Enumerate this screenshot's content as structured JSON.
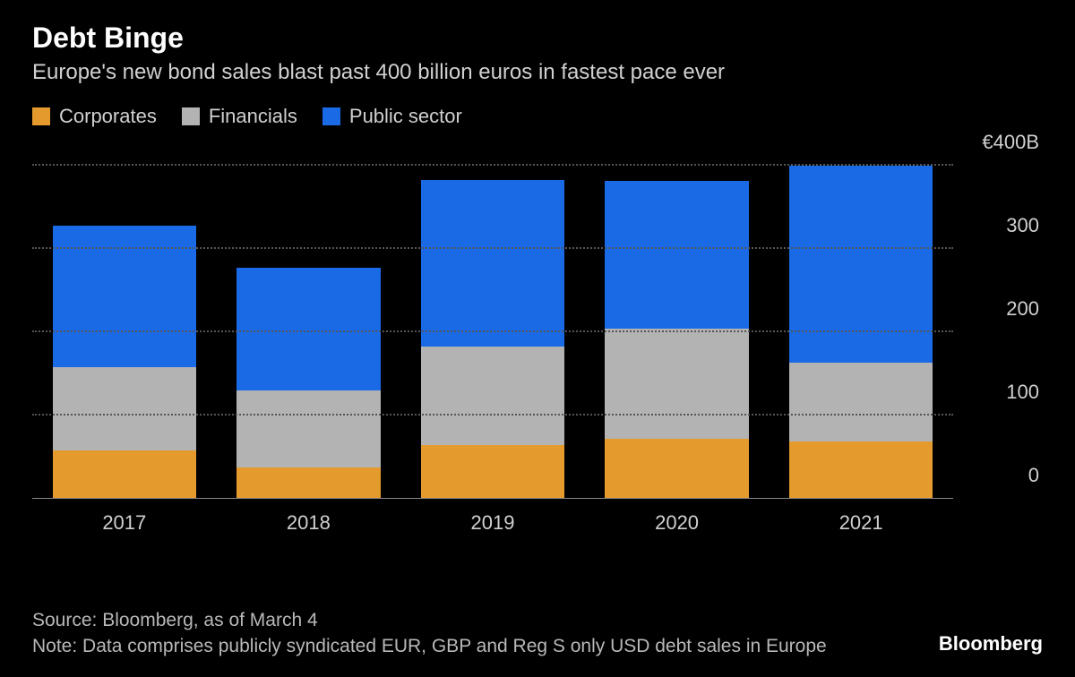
{
  "header": {
    "title": "Debt Binge",
    "subtitle": "Europe's new bond sales blast past 400 billion euros in fastest pace ever"
  },
  "legend": {
    "items": [
      {
        "label": "Corporates",
        "color": "#e59a2e"
      },
      {
        "label": "Financials",
        "color": "#b3b3b3"
      },
      {
        "label": "Public sector",
        "color": "#1b6ae5"
      }
    ]
  },
  "chart": {
    "type": "stacked-bar",
    "background_color": "#000000",
    "grid_color": "#555555",
    "text_color": "#d0d0d0",
    "ylim": [
      0,
      400
    ],
    "ytick_step": 100,
    "yticks": [
      0,
      100,
      200,
      300,
      400
    ],
    "y_top_label": "€400B",
    "ytick_labels_mid": [
      "100",
      "200",
      "300"
    ],
    "ytick_label_bottom": "0",
    "bar_width": 0.78,
    "categories": [
      "2017",
      "2018",
      "2019",
      "2020",
      "2021"
    ],
    "series": [
      {
        "name": "Corporates",
        "color": "#e59a2e",
        "values": [
          58,
          38,
          65,
          72,
          70
        ]
      },
      {
        "name": "Financials",
        "color": "#b3b3b3",
        "values": [
          100,
          92,
          118,
          132,
          95
        ]
      },
      {
        "name": "Public sector",
        "color": "#1b6ae5",
        "values": [
          170,
          148,
          200,
          178,
          240
        ]
      }
    ],
    "label_fontsize": 22,
    "title_fontsize": 32
  },
  "footer": {
    "source": "Source: Bloomberg, as of March 4",
    "note": "Note: Data comprises publicly syndicated EUR, GBP and Reg S only USD debt sales in Europe",
    "brand": "Bloomberg"
  }
}
